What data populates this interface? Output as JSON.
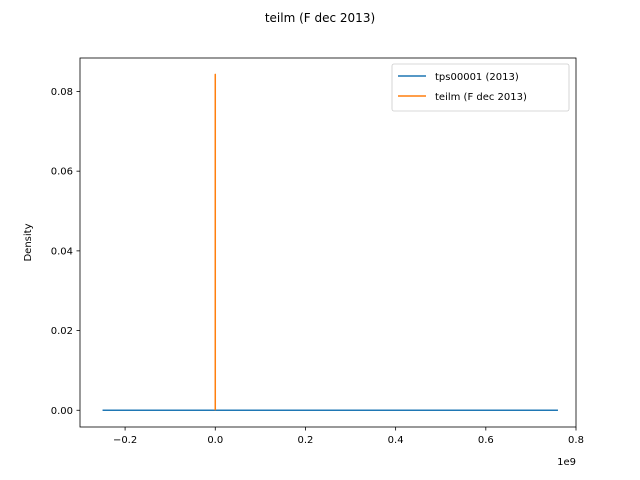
{
  "chart_data": {
    "type": "line",
    "title": "teilm (F dec 2013)",
    "xlabel": "",
    "ylabel": "Density",
    "x_offset_label": "1e9",
    "xlim": [
      -0.3,
      0.8
    ],
    "ylim": [
      -0.0042,
      0.0884
    ],
    "xticks": [
      -0.2,
      0.0,
      0.2,
      0.4,
      0.6,
      0.8
    ],
    "xtick_labels": [
      "−0.2",
      "0.0",
      "0.2",
      "0.4",
      "0.6",
      "0.8"
    ],
    "yticks": [
      0.0,
      0.02,
      0.04,
      0.06,
      0.08
    ],
    "ytick_labels": [
      "0.00",
      "0.02",
      "0.04",
      "0.06",
      "0.08"
    ],
    "grid": false,
    "legend_position": "upper right",
    "series": [
      {
        "name": "tps00001 (2013)",
        "color": "#1f77b4",
        "x": [
          -0.25,
          0.0,
          0.2,
          0.4,
          0.6,
          0.76
        ],
        "y": [
          0.0,
          0.0,
          0.0,
          0.0,
          0.0,
          0.0
        ]
      },
      {
        "name": "teilm (F dec 2013)",
        "color": "#ff7f0e",
        "x": [
          0.0,
          0.0,
          0.0
        ],
        "y": [
          0.0,
          0.0843,
          0.0
        ]
      }
    ]
  }
}
